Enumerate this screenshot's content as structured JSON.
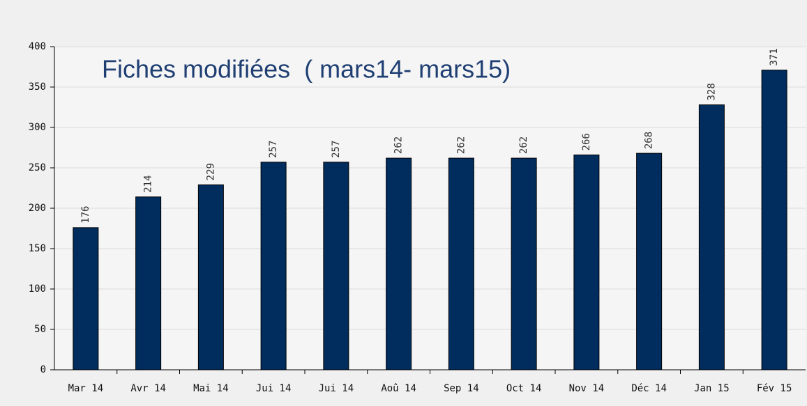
{
  "chart_data": {
    "type": "bar",
    "title": "Fiches modifiées  ( mars14- mars15)",
    "categories": [
      "Mar 14",
      "Avr 14",
      "Mai 14",
      "Jui 14",
      "Jui 14",
      "Aoû 14",
      "Sep 14",
      "Oct 14",
      "Nov 14",
      "Déc 14",
      "Jan 15",
      "Fév 15"
    ],
    "values": [
      176,
      214,
      229,
      257,
      257,
      262,
      262,
      262,
      266,
      268,
      328,
      371
    ],
    "color": "#002d5e",
    "ylim": [
      0,
      400
    ],
    "yticks": [
      0,
      50,
      100,
      150,
      200,
      250,
      300,
      350,
      400
    ],
    "grid": true
  }
}
